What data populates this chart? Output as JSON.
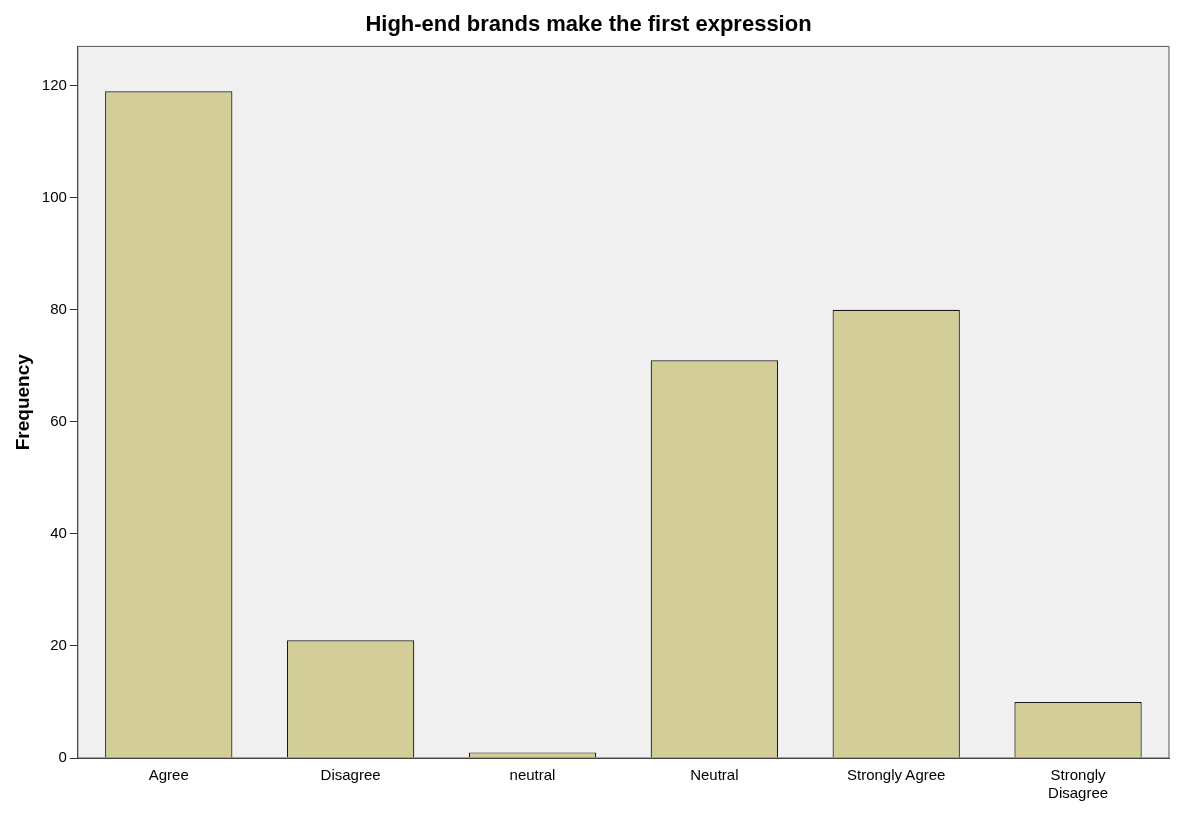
{
  "chart_data": {
    "type": "bar",
    "title": "High-end brands make the first expression",
    "ylabel": "Frequency",
    "categories": [
      "Agree",
      "Disagree",
      "neutral",
      "Neutral",
      "Strongly Agree",
      "Strongly Disagree"
    ],
    "values": [
      119,
      21,
      1,
      71,
      80,
      10
    ],
    "color": "#d3ce97",
    "ylim": [
      0,
      127
    ],
    "yticks": [
      0,
      20,
      40,
      60,
      80,
      100,
      120
    ],
    "grid": false,
    "legend": false
  }
}
